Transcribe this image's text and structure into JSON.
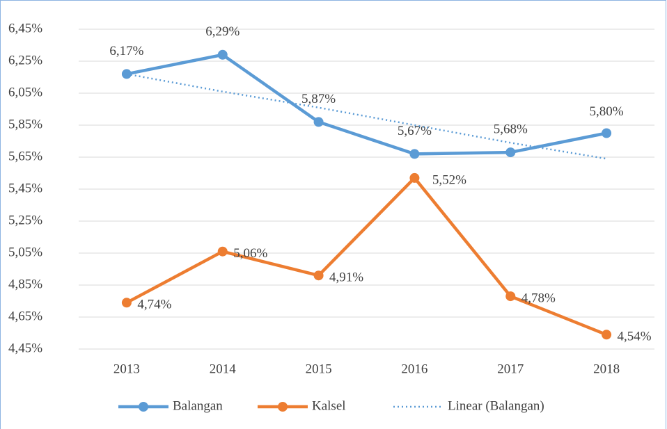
{
  "chart_data": {
    "type": "line",
    "categories": [
      "2013",
      "2014",
      "2015",
      "2016",
      "2017",
      "2018"
    ],
    "series": [
      {
        "name": "Balangan",
        "color": "#5b9bd5",
        "values": [
          6.17,
          6.29,
          5.87,
          5.67,
          5.68,
          5.8
        ],
        "value_labels": [
          "6,17%",
          "6,29%",
          "5,87%",
          "5,67%",
          "5,68%",
          "5,80%"
        ],
        "markers": true
      },
      {
        "name": "Kalsel",
        "color": "#ed7d31",
        "values": [
          4.74,
          5.06,
          4.91,
          5.52,
          4.78,
          4.54
        ],
        "value_labels": [
          "4,74%",
          "5,06%",
          "4,91%",
          "5,52%",
          "4,78%",
          "4,54%"
        ],
        "markers": true
      },
      {
        "name": "Linear (Balangan)",
        "color": "#5b9bd5",
        "values": [
          6.17,
          6.06,
          5.96,
          5.85,
          5.74,
          5.64
        ],
        "dash": "dotted",
        "markers": false
      }
    ],
    "ylim": [
      4.45,
      6.45
    ],
    "yticks": [
      {
        "value": 4.45,
        "label": "4,45%"
      },
      {
        "value": 4.65,
        "label": "4,65%"
      },
      {
        "value": 4.85,
        "label": "4,85%"
      },
      {
        "value": 5.05,
        "label": "5,05%"
      },
      {
        "value": 5.25,
        "label": "5,25%"
      },
      {
        "value": 5.45,
        "label": "5,45%"
      },
      {
        "value": 5.65,
        "label": "5,65%"
      },
      {
        "value": 5.85,
        "label": "5,85%"
      },
      {
        "value": 6.05,
        "label": "6,05%"
      },
      {
        "value": 6.25,
        "label": "6,25%"
      },
      {
        "value": 6.45,
        "label": "6,45%"
      }
    ],
    "grid": true,
    "legend": "bottom"
  }
}
